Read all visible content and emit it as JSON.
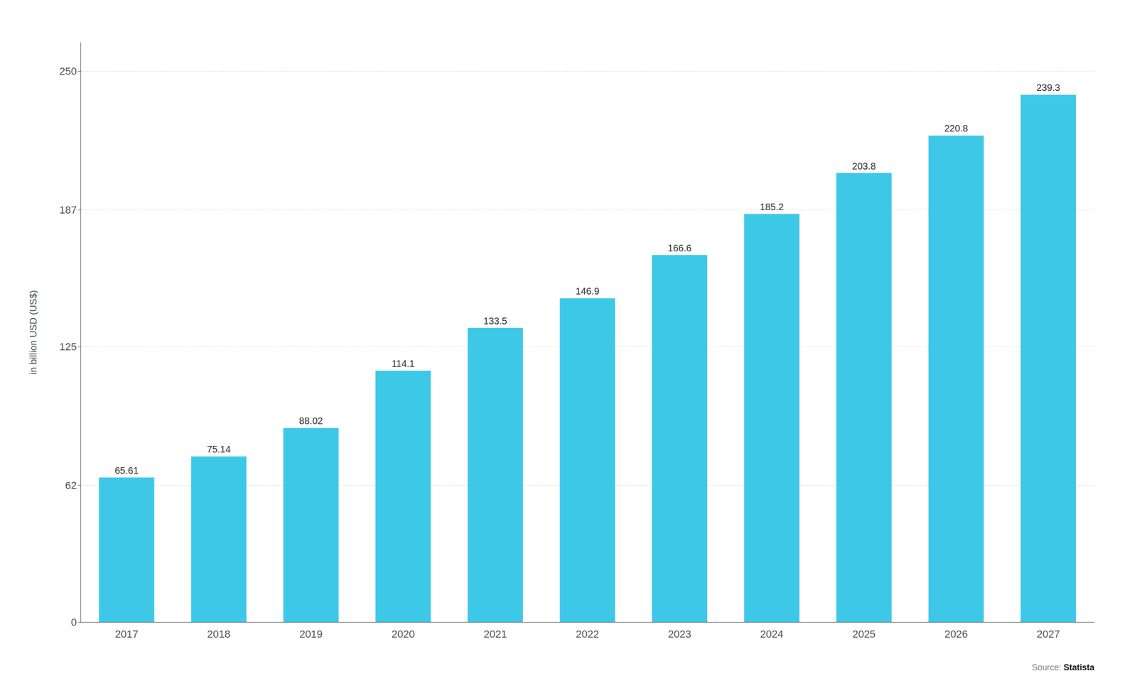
{
  "chart_data": {
    "type": "bar",
    "categories": [
      "2017",
      "2018",
      "2019",
      "2020",
      "2021",
      "2022",
      "2023",
      "2024",
      "2025",
      "2026",
      "2027"
    ],
    "values": [
      65.61,
      75.14,
      88.02,
      114.1,
      133.5,
      146.9,
      166.6,
      185.2,
      203.8,
      220.8,
      239.3
    ],
    "color": "#3EC8E8",
    "ylabel": "in billion USD (US$)",
    "ylim": [
      0,
      263
    ],
    "yticks": [
      0,
      62,
      125,
      187,
      250
    ],
    "grid": true,
    "data_labels": true,
    "annotations": [
      "Source: ",
      "Statista"
    ]
  }
}
